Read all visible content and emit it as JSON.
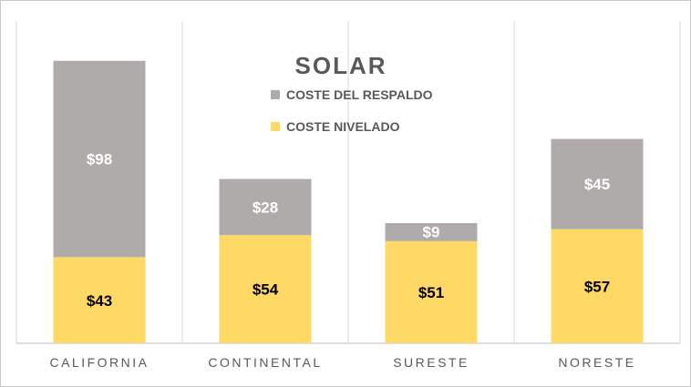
{
  "chart_data": {
    "type": "bar",
    "stacked": true,
    "title": "SOLAR",
    "categories": [
      "CALIFORNIA",
      "CONTINENTAL",
      "SURESTE",
      "NORESTE"
    ],
    "series": [
      {
        "name": "COSTE NIVELADO",
        "values": [
          43,
          54,
          51,
          57
        ],
        "labels": [
          "$43",
          "$54",
          "$51",
          "$57"
        ],
        "color": "#FFD966",
        "label_color": "#000000"
      },
      {
        "name": "COSTE DEL RESPALDO",
        "values": [
          98,
          28,
          9,
          45
        ],
        "labels": [
          "$98",
          "$28",
          "$9",
          "$45"
        ],
        "color": "#AFABAB",
        "label_color": "#ffffff"
      }
    ],
    "legend_order": [
      "COSTE DEL RESPALDO",
      "COSTE NIVELADO"
    ],
    "legend_position": "top-center",
    "grid": "vertical category separators",
    "ylim": [
      0,
      150
    ],
    "gridline_color": "#d9d9d9",
    "axis_color": "#bfbfbf"
  }
}
